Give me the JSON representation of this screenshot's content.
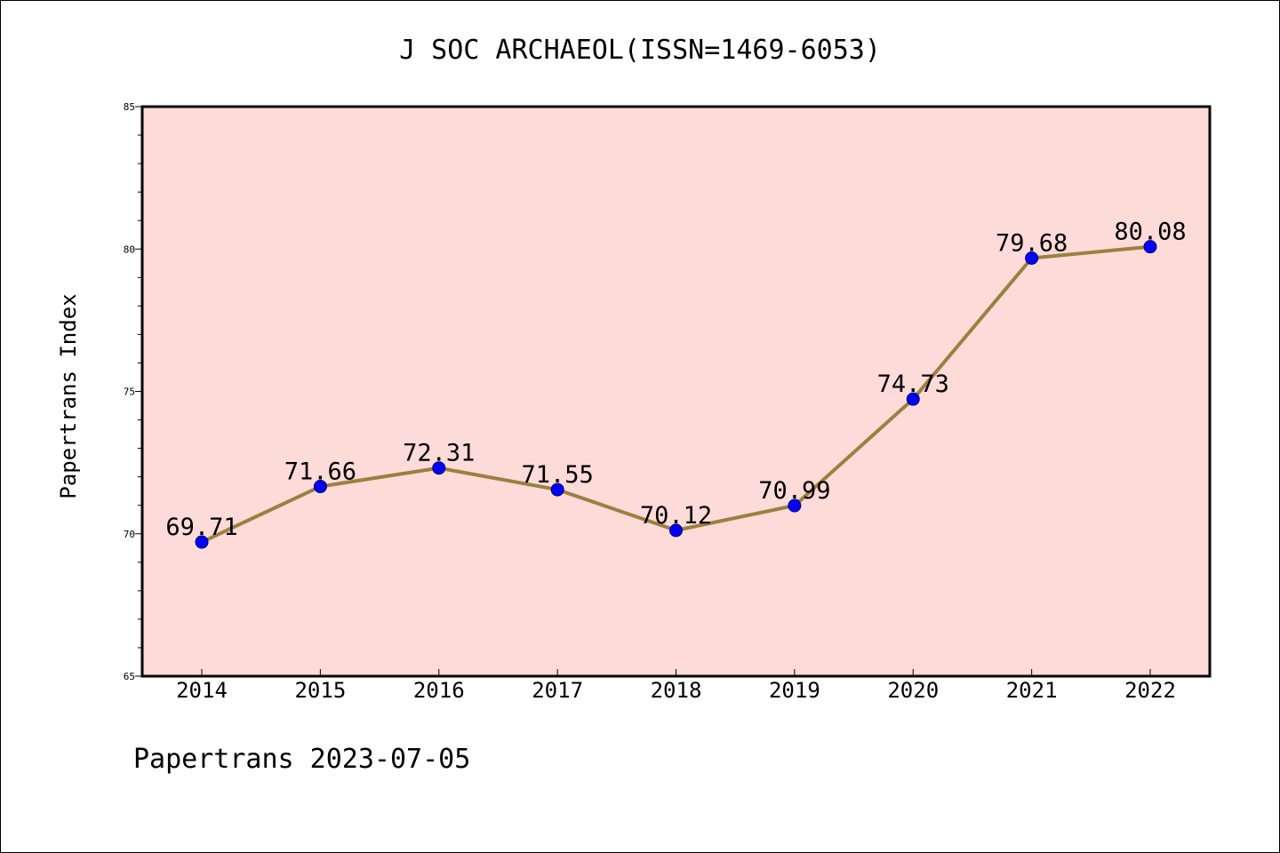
{
  "chart_data": {
    "type": "line",
    "title": "J SOC ARCHAEOL(ISSN=1469-6053)",
    "xlabel": "",
    "ylabel": "Papertrans Index",
    "footer": "Papertrans 2023-07-05",
    "categories": [
      "2014",
      "2015",
      "2016",
      "2017",
      "2018",
      "2019",
      "2020",
      "2021",
      "2022"
    ],
    "series": [
      {
        "values": [
          69.71,
          71.66,
          72.31,
          71.55,
          70.12,
          70.99,
          74.73,
          79.68,
          80.08
        ],
        "labels": [
          "69.71",
          "71.66",
          "72.31",
          "71.55",
          "70.12",
          "70.99",
          "74.73",
          "79.68",
          "80.08"
        ],
        "line_color": "#9b8040",
        "marker_color": "#0000ff"
      }
    ],
    "ylim": [
      65,
      85
    ],
    "y_ticks": [
      "65",
      "70",
      "75",
      "80",
      "85"
    ],
    "plot_background": "#fddbd8",
    "grid": false,
    "legend": "none"
  }
}
